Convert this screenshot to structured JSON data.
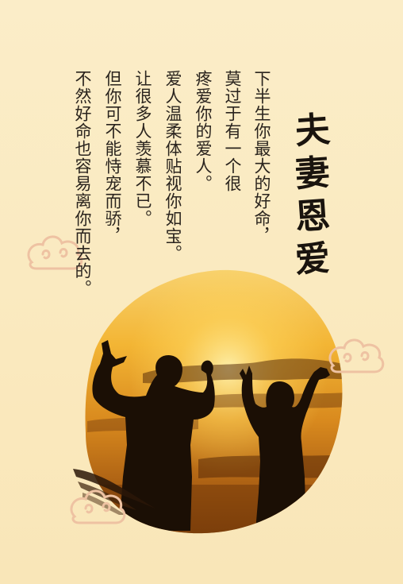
{
  "title": {
    "chars": [
      "夫",
      "妻",
      "恩",
      "爱"
    ]
  },
  "poem": {
    "lines": [
      "下半生你最大的好命，",
      "莫过于有一个很",
      "疼爱你的爱人。",
      "爱人温柔体贴视你如宝。",
      "让很多人羡慕不已。",
      "但你可不能恃宠而骄，",
      "不然好命也容易离你而去的。"
    ]
  },
  "colors": {
    "background": "#fbebc2",
    "sky_top": "#f6c04a",
    "sky_bottom": "#8a4a10",
    "silhouette": "#1b0f05",
    "text": "#2a241e",
    "cloud": "#f0c7a6"
  },
  "icons": [
    "auspicious-cloud-icon",
    "ink-brush-stroke",
    "couple-silhouette"
  ]
}
